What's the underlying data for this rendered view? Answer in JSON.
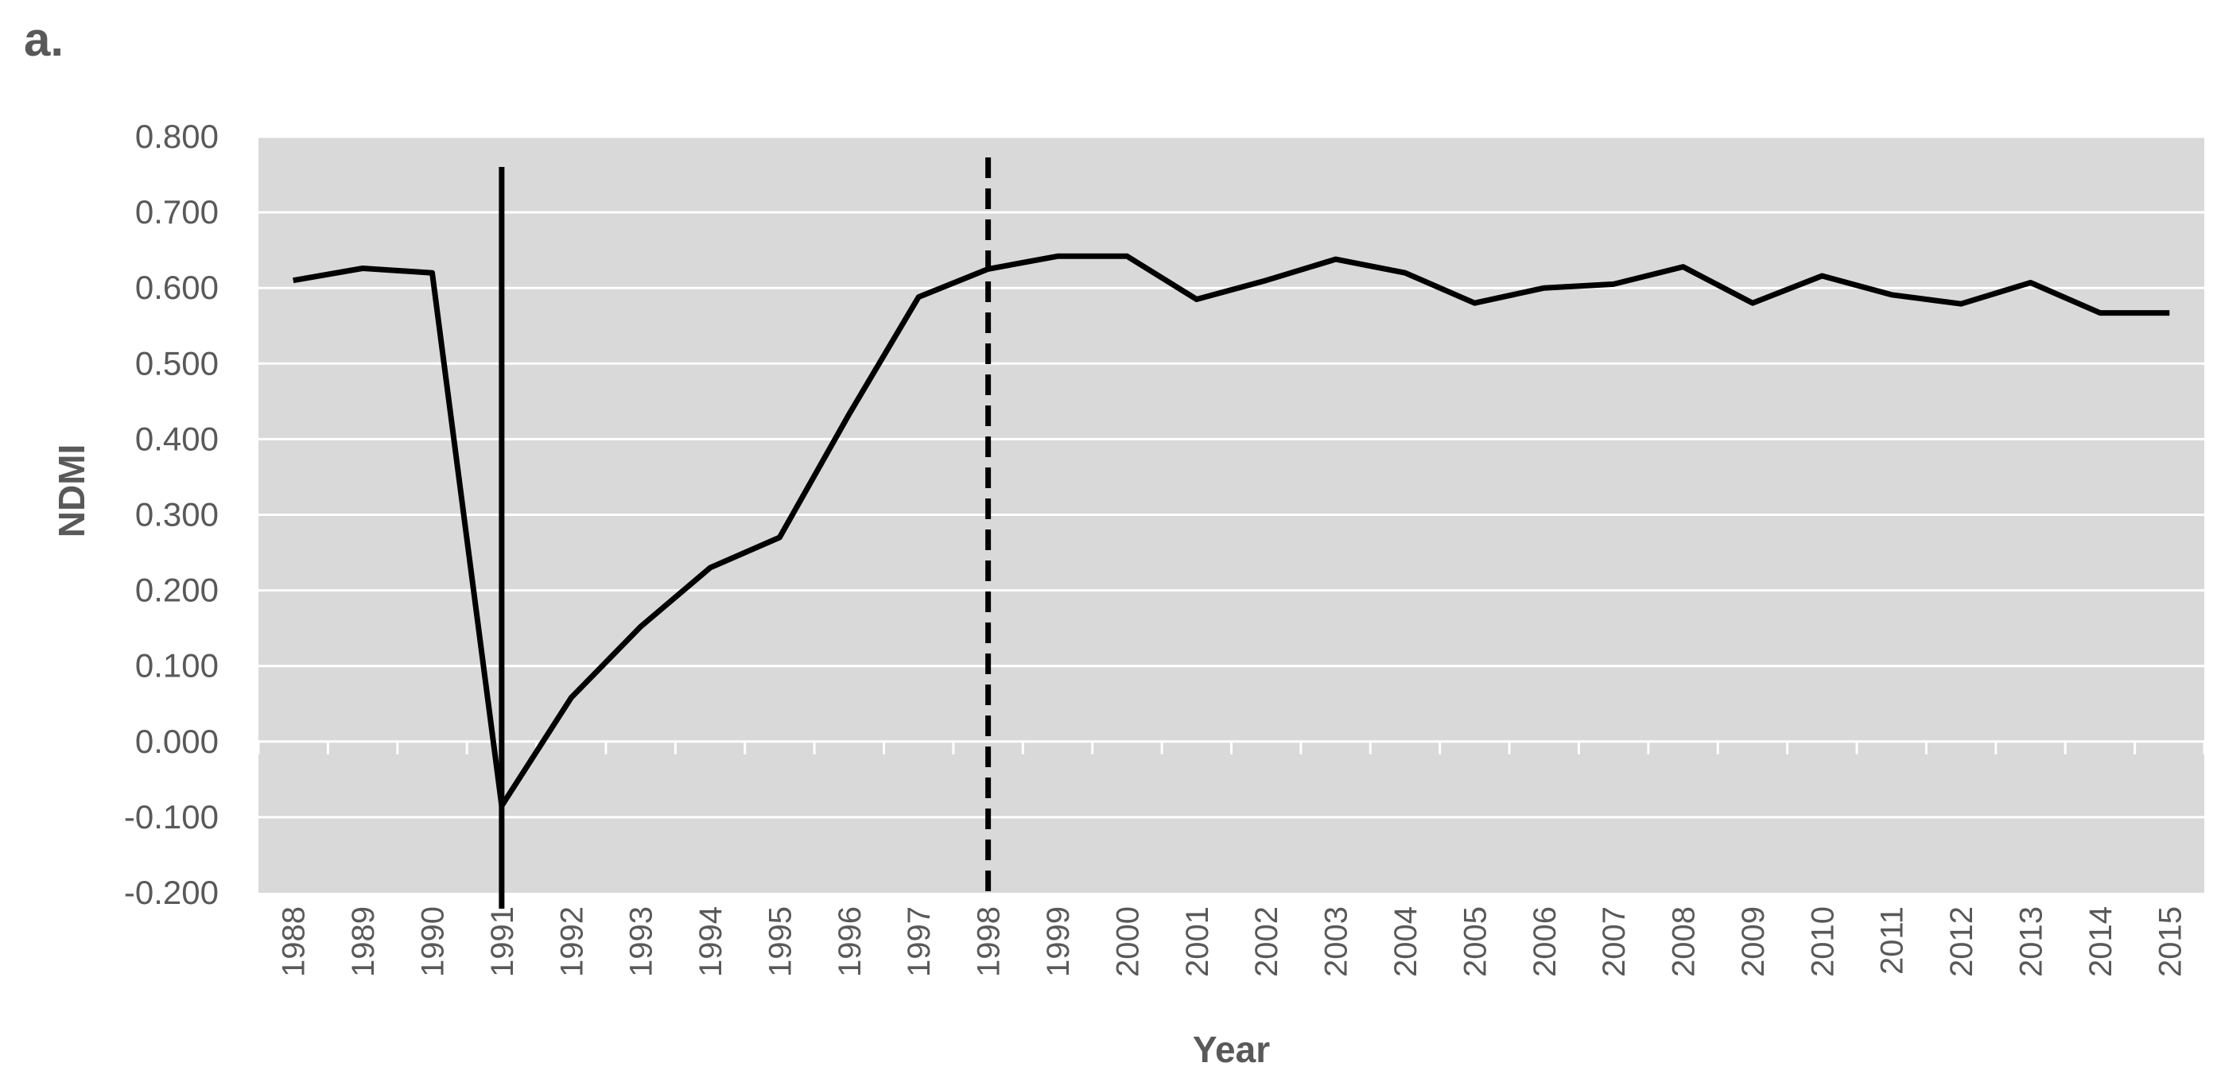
{
  "panel_label": "a.",
  "chart_data": {
    "type": "line",
    "xlabel": "Year",
    "ylabel": "NDMI",
    "ylim": [
      -0.2,
      0.8
    ],
    "y_ticks": [
      "0.800",
      "0.700",
      "0.600",
      "0.500",
      "0.400",
      "0.300",
      "0.200",
      "0.100",
      "0.000",
      "-0.100",
      "-0.200"
    ],
    "categories": [
      "1988",
      "1989",
      "1990",
      "1991",
      "1992",
      "1993",
      "1994",
      "1995",
      "1996",
      "1997",
      "1998",
      "1999",
      "2000",
      "2001",
      "2002",
      "2003",
      "2004",
      "2005",
      "2006",
      "2007",
      "2008",
      "2009",
      "2010",
      "2011",
      "2012",
      "2013",
      "2014",
      "2015"
    ],
    "series": [
      {
        "values": [
          0.61,
          0.626,
          0.62,
          -0.085,
          0.058,
          0.152,
          0.23,
          0.27,
          0.433,
          0.588,
          0.625,
          0.642,
          0.642,
          0.585,
          0.61,
          0.638,
          0.62,
          0.58,
          0.6,
          0.605,
          0.628,
          0.58,
          0.616,
          0.591,
          0.579,
          0.607,
          0.567,
          0.567
        ]
      }
    ],
    "reference_lines": [
      {
        "x": "1991",
        "style": "solid"
      },
      {
        "x": "1998",
        "style": "dashed"
      }
    ],
    "grid": "horizontal",
    "legend": "none",
    "colors": {
      "plot_bg": "#d9d9d9",
      "grid": "#ffffff",
      "line": "#000000",
      "text": "#595959"
    }
  }
}
